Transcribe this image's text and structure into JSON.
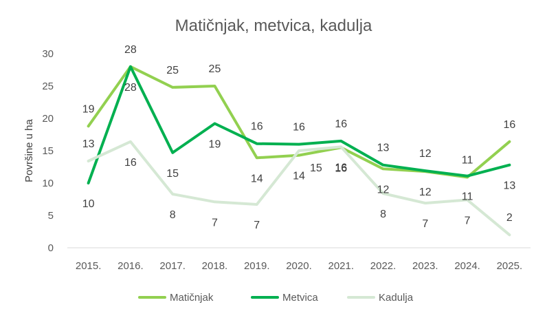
{
  "chart_data": {
    "type": "line",
    "title": "Matičnjak, metvica, kadulja",
    "xlabel": "",
    "ylabel": "Površine u ha",
    "ylim": [
      0,
      30
    ],
    "yticks": [
      0,
      5,
      10,
      15,
      20,
      25,
      30
    ],
    "categories": [
      "2015.",
      "2016.",
      "2017.",
      "2018.",
      "2019.",
      "2020.",
      "2021.",
      "2022.",
      "2023.",
      "2024.",
      "2025."
    ],
    "grid": false,
    "legend": "bottom",
    "series": [
      {
        "name": "Matičnjak",
        "color": "#92D050",
        "values": [
          18.8,
          28.0,
          24.8,
          25.0,
          13.9,
          14.3,
          15.5,
          12.2,
          11.8,
          10.9,
          16.4
        ],
        "labels": [
          "19",
          "28",
          "25",
          "25",
          "14",
          "14",
          "16",
          "12",
          "12",
          "11",
          "16"
        ],
        "label_pos": [
          "above",
          "above",
          "above",
          "above",
          "below",
          "below",
          "below",
          "below",
          "below",
          "above",
          "above"
        ]
      },
      {
        "name": "Metvica",
        "color": "#00B050",
        "values": [
          10.0,
          28.0,
          14.7,
          19.2,
          16.1,
          16.0,
          16.5,
          12.8,
          11.9,
          11.1,
          12.8
        ],
        "labels": [
          "10",
          "28",
          "15",
          "19",
          "16",
          "16",
          "16",
          "13",
          "12",
          "11",
          "13"
        ],
        "label_pos": [
          "below",
          "below",
          "below",
          "below",
          "above",
          "above",
          "above",
          "above",
          "above",
          "below",
          "below"
        ]
      },
      {
        "name": "Kadulja",
        "color": "#D5E8D4",
        "values": [
          13.4,
          16.4,
          8.3,
          7.1,
          6.7,
          15.0,
          15.6,
          8.4,
          6.9,
          7.4,
          2.0
        ],
        "labels": [
          "13",
          "16",
          "8",
          "7",
          "7",
          "15",
          "16",
          "8",
          "7",
          "7",
          "2"
        ],
        "label_pos": [
          "above",
          "below",
          "below",
          "below",
          "below",
          "right",
          "below",
          "below",
          "below",
          "below",
          "above"
        ]
      }
    ]
  }
}
